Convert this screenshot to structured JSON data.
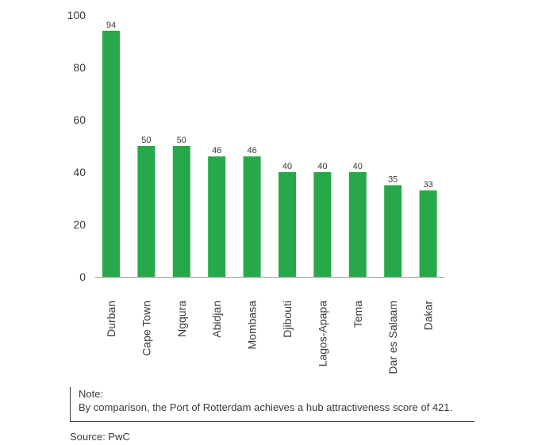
{
  "chart_data": {
    "type": "bar",
    "title": "",
    "xlabel": "",
    "ylabel": "",
    "ylim": [
      0,
      100
    ],
    "yticks": [
      0,
      20,
      40,
      60,
      80,
      100
    ],
    "categories": [
      "Durban",
      "Cape Town",
      "Ngqura",
      "Abidjan",
      "Mombasa",
      "Djibouti",
      "Lagos-Apapa",
      "Tema",
      "Dar es Salaam",
      "Dakar"
    ],
    "values": [
      94,
      50,
      50,
      46,
      46,
      40,
      40,
      40,
      35,
      33
    ],
    "bar_color": "#27a84a",
    "grid": false,
    "legend": "none"
  },
  "note": {
    "heading": "Note:",
    "text": "By comparison, the Port of Rotterdam achieves a hub attractiveness score of 421."
  },
  "source": "Source: PwC"
}
